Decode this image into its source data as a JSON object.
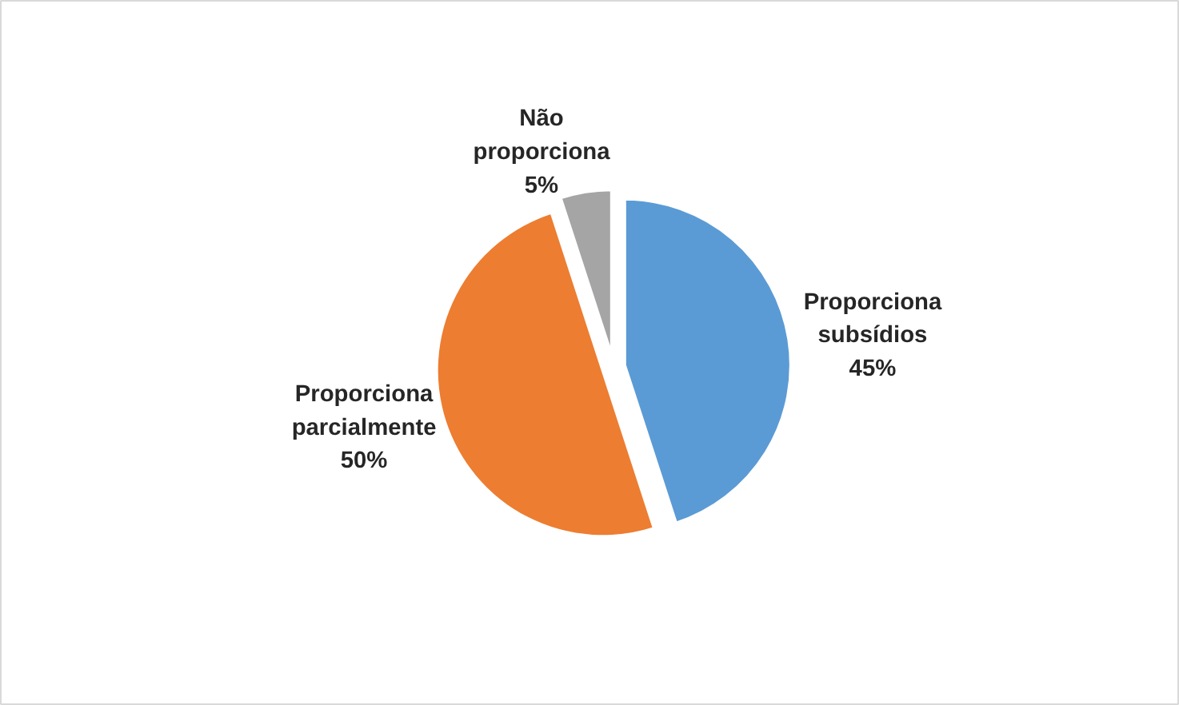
{
  "chart_data": {
    "type": "pie",
    "categories": [
      "Proporciona subsídios",
      "Proporciona parcialmente",
      "Não proporciona"
    ],
    "values": [
      45,
      50,
      5
    ],
    "colors": [
      "#5b9bd5",
      "#ed7d31",
      "#a5a5a5"
    ],
    "value_labels": [
      "45%",
      "50%",
      "5%"
    ]
  }
}
